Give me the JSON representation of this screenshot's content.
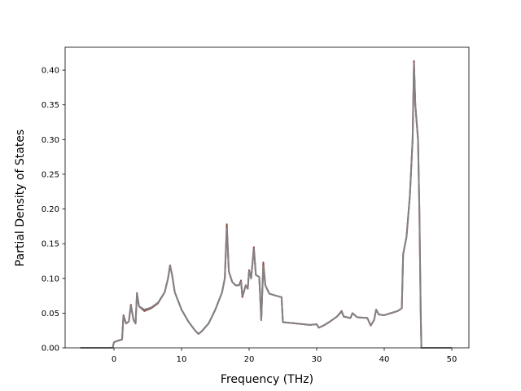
{
  "chart_data": {
    "type": "line",
    "xlabel": "Frequency (THz)",
    "ylabel": "Partial Density of States",
    "x": [
      -5,
      -0.2,
      0,
      0.5,
      1.2,
      1.4,
      1.8,
      2.2,
      2.5,
      2.9,
      3.2,
      3.4,
      3.7,
      4.5,
      5.5,
      6.5,
      7.5,
      8.0,
      8.3,
      8.6,
      9.0,
      10,
      11,
      12,
      12.5,
      13,
      14,
      15,
      16,
      16.4,
      16.7,
      17,
      17.5,
      18,
      18.5,
      18.8,
      19,
      19.5,
      19.8,
      20,
      20.3,
      20.7,
      21,
      21.5,
      21.8,
      22.1,
      22.4,
      23,
      24,
      24.8,
      25,
      27,
      29,
      30,
      30.3,
      31,
      32,
      33,
      33.7,
      34,
      35,
      35.3,
      36,
      37.5,
      38,
      38.5,
      38.8,
      39.2,
      40,
      41,
      42,
      42.6,
      42.8,
      43.3,
      43.8,
      44.2,
      44.4,
      44.6,
      45,
      45.2,
      45.4,
      45.5,
      50
    ],
    "series": [
      {
        "color": "#8c4b42",
        "values": [
          0,
          0,
          0.008,
          0.01,
          0.012,
          0.047,
          0.035,
          0.038,
          0.062,
          0.04,
          0.035,
          0.079,
          0.06,
          0.053,
          0.057,
          0.064,
          0.08,
          0.1,
          0.119,
          0.105,
          0.08,
          0.055,
          0.038,
          0.025,
          0.02,
          0.024,
          0.035,
          0.055,
          0.08,
          0.1,
          0.178,
          0.11,
          0.095,
          0.09,
          0.09,
          0.097,
          0.073,
          0.09,
          0.085,
          0.112,
          0.1,
          0.145,
          0.105,
          0.102,
          0.04,
          0.123,
          0.09,
          0.078,
          0.075,
          0.073,
          0.037,
          0.035,
          0.033,
          0.034,
          0.029,
          0.032,
          0.038,
          0.045,
          0.053,
          0.045,
          0.043,
          0.05,
          0.044,
          0.043,
          0.032,
          0.04,
          0.055,
          0.048,
          0.047,
          0.05,
          0.053,
          0.057,
          0.135,
          0.16,
          0.22,
          0.3,
          0.413,
          0.35,
          0.3,
          0.2,
          0.05,
          0,
          0
        ]
      },
      {
        "color": "#858085",
        "values": [
          0,
          0,
          0.008,
          0.01,
          0.012,
          0.045,
          0.035,
          0.038,
          0.06,
          0.04,
          0.035,
          0.078,
          0.06,
          0.055,
          0.058,
          0.065,
          0.08,
          0.1,
          0.118,
          0.105,
          0.08,
          0.055,
          0.038,
          0.025,
          0.02,
          0.024,
          0.035,
          0.055,
          0.08,
          0.1,
          0.172,
          0.11,
          0.095,
          0.09,
          0.09,
          0.095,
          0.075,
          0.09,
          0.085,
          0.11,
          0.1,
          0.142,
          0.105,
          0.102,
          0.04,
          0.118,
          0.09,
          0.078,
          0.075,
          0.073,
          0.037,
          0.035,
          0.033,
          0.034,
          0.029,
          0.032,
          0.038,
          0.045,
          0.052,
          0.045,
          0.043,
          0.05,
          0.044,
          0.043,
          0.032,
          0.04,
          0.055,
          0.048,
          0.047,
          0.05,
          0.053,
          0.057,
          0.135,
          0.16,
          0.22,
          0.3,
          0.41,
          0.35,
          0.3,
          0.2,
          0.05,
          0,
          0
        ]
      }
    ],
    "xlim": [
      -7.23,
      52.53
    ],
    "ylim": [
      0,
      0.433
    ],
    "xticks": [
      0,
      10,
      20,
      30,
      40,
      50
    ],
    "yticks": [
      {
        "value": 0,
        "label": "0.00"
      },
      0.05,
      {
        "value": 0.1,
        "label": "0.10"
      },
      0.15,
      {
        "value": 0.2,
        "label": "0.20"
      },
      0.25,
      {
        "value": 0.3,
        "label": "0.30"
      },
      0.35,
      {
        "value": 0.4,
        "label": "0.40"
      }
    ],
    "grid": false
  }
}
